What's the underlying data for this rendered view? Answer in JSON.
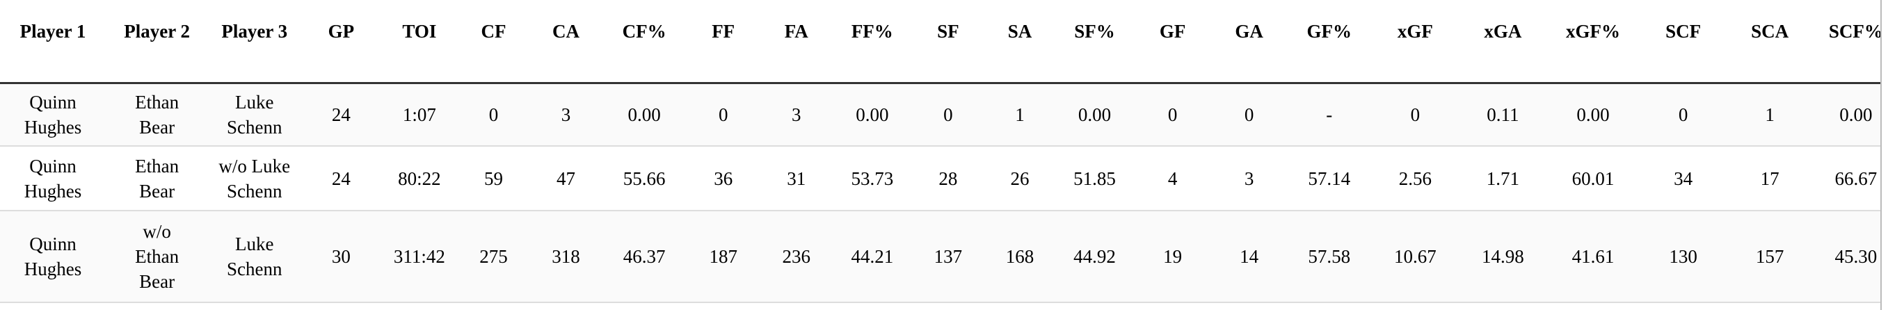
{
  "table": {
    "headers": [
      "Player 1",
      "Player 2",
      "Player 3",
      "GP",
      "TOI",
      "CF",
      "CA",
      "CF%",
      "FF",
      "FA",
      "FF%",
      "SF",
      "SA",
      "SF%",
      "GF",
      "GA",
      "GF%",
      "xGF",
      "xGA",
      "xGF%",
      "SCF",
      "SCA",
      "SCF%"
    ],
    "rows": [
      [
        "Quinn Hughes",
        "Ethan Bear",
        "Luke Schenn",
        "24",
        "1:07",
        "0",
        "3",
        "0.00",
        "0",
        "3",
        "0.00",
        "0",
        "1",
        "0.00",
        "0",
        "0",
        "-",
        "0",
        "0.11",
        "0.00",
        "0",
        "1",
        "0.00"
      ],
      [
        "Quinn Hughes",
        "Ethan Bear",
        "w/o Luke Schenn",
        "24",
        "80:22",
        "59",
        "47",
        "55.66",
        "36",
        "31",
        "53.73",
        "28",
        "26",
        "51.85",
        "4",
        "3",
        "57.14",
        "2.56",
        "1.71",
        "60.01",
        "34",
        "17",
        "66.67"
      ],
      [
        "Quinn Hughes",
        "w/o Ethan Bear",
        "Luke Schenn",
        "30",
        "311:42",
        "275",
        "318",
        "46.37",
        "187",
        "236",
        "44.21",
        "137",
        "168",
        "44.92",
        "19",
        "14",
        "57.58",
        "10.67",
        "14.98",
        "41.61",
        "130",
        "157",
        "45.30"
      ]
    ]
  }
}
